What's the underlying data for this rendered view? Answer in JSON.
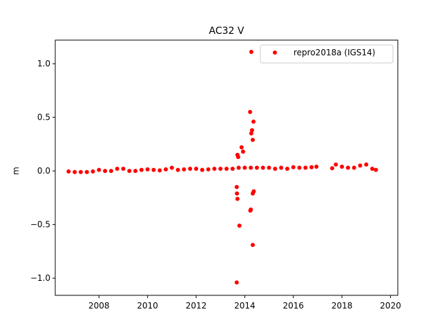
{
  "chart_data": {
    "type": "scatter",
    "title": "AC32 V",
    "xlabel": "",
    "ylabel": "m",
    "xlim": [
      2006.2,
      2020.3
    ],
    "ylim": [
      -1.16,
      1.22
    ],
    "x_ticks": [
      2008,
      2010,
      2012,
      2014,
      2016,
      2018,
      2020
    ],
    "y_ticks": [
      -1.0,
      -0.5,
      0.0,
      0.5,
      1.0
    ],
    "x_tick_labels": [
      "2008",
      "2010",
      "2012",
      "2014",
      "2016",
      "2018",
      "2020"
    ],
    "y_tick_labels": [
      "−1.0",
      "−0.5",
      "0.0",
      "0.5",
      "1.0"
    ],
    "grid": false,
    "legend_position": "top-right",
    "series": [
      {
        "name": "repro2018a (IGS14)",
        "color": "#ff0000",
        "marker": "circle",
        "x": [
          2006.75,
          2007.0,
          2007.25,
          2007.5,
          2007.75,
          2008.0,
          2008.25,
          2008.5,
          2008.75,
          2009.0,
          2009.25,
          2009.5,
          2009.75,
          2010.0,
          2010.25,
          2010.5,
          2010.75,
          2011.0,
          2011.25,
          2011.5,
          2011.75,
          2012.0,
          2012.25,
          2012.5,
          2012.75,
          2013.0,
          2013.25,
          2013.5,
          2013.75,
          2014.0,
          2014.25,
          2014.5,
          2014.75,
          2015.0,
          2015.25,
          2015.5,
          2015.75,
          2016.0,
          2016.25,
          2016.5,
          2016.75,
          2016.95,
          2017.6,
          2017.75,
          2018.0,
          2018.25,
          2018.5,
          2018.75,
          2019.0,
          2019.25,
          2019.4,
          2014.27,
          2014.22,
          2014.36,
          2014.3,
          2014.27,
          2014.33,
          2013.87,
          2013.93,
          2013.7,
          2013.73,
          2014.37,
          2014.33,
          2013.67,
          2013.68,
          2013.7,
          2014.25,
          2014.23,
          2013.78,
          2014.33,
          2013.67
        ],
        "y": [
          -0.005,
          -0.01,
          -0.01,
          -0.01,
          -0.005,
          0.01,
          0.0,
          0.0,
          0.02,
          0.02,
          0.0,
          0.0,
          0.01,
          0.015,
          0.01,
          0.005,
          0.015,
          0.03,
          0.01,
          0.015,
          0.02,
          0.02,
          0.01,
          0.015,
          0.02,
          0.02,
          0.02,
          0.02,
          0.03,
          0.03,
          0.03,
          0.03,
          0.03,
          0.03,
          0.02,
          0.03,
          0.02,
          0.035,
          0.03,
          0.03,
          0.035,
          0.04,
          0.025,
          0.06,
          0.04,
          0.03,
          0.03,
          0.05,
          0.06,
          0.02,
          0.01,
          1.11,
          0.55,
          0.46,
          0.38,
          0.35,
          0.29,
          0.22,
          0.18,
          0.15,
          0.13,
          -0.19,
          -0.21,
          -0.15,
          -0.21,
          -0.26,
          -0.36,
          -0.37,
          -0.51,
          -0.69,
          -1.04
        ]
      }
    ]
  }
}
